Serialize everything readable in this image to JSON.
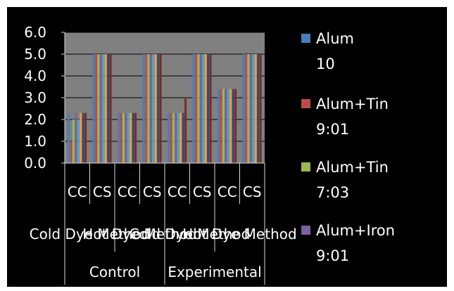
{
  "chart_data": {
    "type": "bar",
    "ylim": [
      0,
      6
    ],
    "y_ticks": [
      "0.0",
      "1.0",
      "2.0",
      "3.0",
      "4.0",
      "5.0",
      "6.0"
    ],
    "grid": true,
    "legend_position": "right",
    "categories": [
      "CC",
      "CS",
      "CC",
      "CS",
      "CC",
      "CS",
      "CC",
      "CS"
    ],
    "method_labels": [
      "Cold Dye Method",
      "Hot Dye Method",
      "Cold Dye Method",
      "Hot Dye Method"
    ],
    "group_labels": [
      "Control",
      "Experimental"
    ],
    "series": [
      {
        "name": "Alum 10",
        "color": "#4a7ebb",
        "values": [
          2.3,
          5.0,
          2.3,
          5.0,
          2.3,
          5.0,
          3.4,
          5.0
        ]
      },
      {
        "name": "Alum+Tin 9:01",
        "color": "#be4b48",
        "values": [
          1.0,
          5.0,
          2.3,
          5.0,
          2.3,
          5.0,
          3.4,
          5.0
        ]
      },
      {
        "name": "Alum+Tin 7:03",
        "color": "#98b954",
        "values": [
          2.0,
          5.0,
          2.3,
          5.0,
          2.3,
          5.0,
          3.4,
          5.0
        ]
      },
      {
        "name": "Alum+Iron 9:01",
        "color": "#7d60a0",
        "values": [
          2.3,
          5.0,
          2.3,
          5.0,
          2.3,
          5.0,
          3.4,
          5.0
        ]
      },
      {
        "color": "#46aac5",
        "values": [
          2.0,
          5.0,
          2.3,
          5.0,
          2.3,
          5.0,
          3.4,
          5.0
        ]
      },
      {
        "color": "#f79646",
        "values": [
          2.3,
          5.0,
          2.3,
          5.0,
          2.3,
          5.0,
          3.4,
          5.0
        ]
      },
      {
        "color": "#2c4d75",
        "values": [
          2.3,
          5.0,
          2.3,
          5.0,
          2.3,
          5.0,
          3.4,
          5.0
        ]
      },
      {
        "color": "#772c2a",
        "values": [
          2.3,
          5.0,
          2.3,
          5.0,
          3.0,
          5.0,
          3.4,
          5.0
        ]
      }
    ]
  }
}
